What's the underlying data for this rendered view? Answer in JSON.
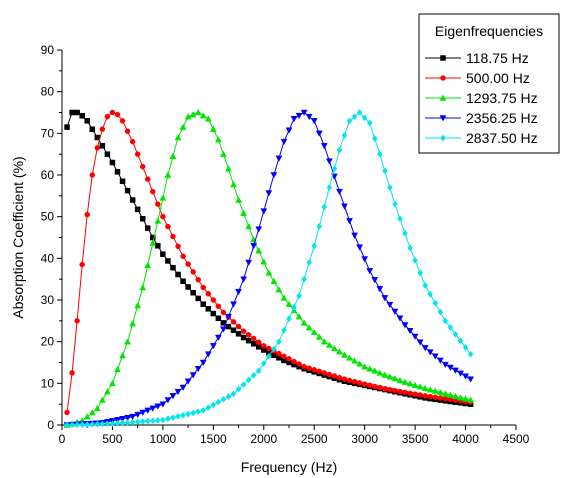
{
  "chart_data": {
    "type": "line",
    "xlabel": "Frequency (Hz)",
    "ylabel": "Absorption Coefficient (%)",
    "xlim": [
      0,
      4500
    ],
    "ylim": [
      0,
      90
    ],
    "xticks": [
      0,
      500,
      1000,
      1500,
      2000,
      2500,
      3000,
      3500,
      4000,
      4500
    ],
    "yticks": [
      0,
      10,
      20,
      30,
      40,
      50,
      60,
      70,
      80,
      90
    ],
    "grid": false,
    "legend": {
      "title": "Eigenfrequencies",
      "position": "top-right"
    },
    "series": [
      {
        "name": "118.75 Hz",
        "color": "#000000",
        "marker": "square",
        "x": [
          50,
          100,
          150,
          200,
          250,
          300,
          350,
          400,
          450,
          500,
          600,
          700,
          800,
          900,
          1000,
          1200,
          1400,
          1600,
          1800,
          2000,
          2200,
          2400,
          2600,
          2800,
          3000,
          3200,
          3400,
          3600,
          3800,
          4050
        ],
        "y": [
          71.5,
          75,
          75,
          74.2,
          73,
          71,
          69,
          67,
          65,
          63,
          58.5,
          54,
          49.5,
          45,
          41,
          34.5,
          29,
          24.5,
          21,
          18,
          15.5,
          13.5,
          12,
          10.5,
          9.5,
          8.5,
          7.5,
          6.5,
          5.8,
          5
        ]
      },
      {
        "name": "500.00 Hz",
        "color": "#ff0000",
        "marker": "circle",
        "x": [
          50,
          100,
          150,
          200,
          250,
          300,
          350,
          400,
          450,
          500,
          550,
          600,
          700,
          800,
          900,
          1000,
          1200,
          1400,
          1600,
          1800,
          2000,
          2200,
          2400,
          2600,
          2800,
          3000,
          3200,
          3400,
          3600,
          3800,
          4050
        ],
        "y": [
          3,
          12.5,
          25,
          38.5,
          50.5,
          60,
          66.5,
          71,
          74,
          75,
          74.5,
          73,
          68,
          62,
          56,
          50,
          40.5,
          33,
          27,
          22.5,
          19,
          16.5,
          14,
          12.5,
          11,
          9.8,
          8.7,
          7.8,
          7,
          6.3,
          5.5
        ]
      },
      {
        "name": "1293.75 Hz",
        "color": "#00e600",
        "marker": "triangle-up",
        "x": [
          50,
          200,
          350,
          500,
          650,
          800,
          950,
          1050,
          1150,
          1250,
          1350,
          1450,
          1550,
          1650,
          1750,
          1900,
          2050,
          2200,
          2400,
          2600,
          2800,
          3000,
          3200,
          3400,
          3600,
          3800,
          4050
        ],
        "y": [
          0,
          1,
          4,
          10,
          20,
          33,
          49,
          60,
          69,
          74,
          75,
          73.5,
          68.5,
          61.5,
          54,
          44.5,
          36.5,
          30.5,
          24.5,
          20,
          16.8,
          14,
          12,
          10.3,
          8.8,
          7.5,
          6
        ]
      },
      {
        "name": "2356.25 Hz",
        "color": "#0000ff",
        "marker": "triangle-down",
        "x": [
          50,
          400,
          700,
          1000,
          1200,
          1400,
          1600,
          1800,
          1950,
          2100,
          2200,
          2300,
          2400,
          2500,
          2600,
          2750,
          2900,
          3050,
          3200,
          3400,
          3600,
          3800,
          4050
        ],
        "y": [
          0,
          0.5,
          2,
          5,
          9,
          15,
          23,
          35,
          47,
          60,
          68,
          73.5,
          75,
          73,
          67,
          56,
          45.5,
          37,
          30.5,
          24,
          18.5,
          14.5,
          11
        ]
      },
      {
        "name": "2837.50 Hz",
        "color": "#00e5ee",
        "marker": "diamond",
        "x": [
          50,
          500,
          1000,
          1400,
          1700,
          1950,
          2150,
          2350,
          2500,
          2650,
          2750,
          2850,
          2950,
          3050,
          3150,
          3300,
          3450,
          3600,
          3800,
          4050
        ],
        "y": [
          0,
          0.3,
          1.2,
          3.5,
          7.5,
          13,
          20,
          31,
          43,
          57,
          66,
          73,
          75,
          72.5,
          65,
          53,
          42.5,
          33.5,
          25,
          17
        ]
      }
    ]
  }
}
